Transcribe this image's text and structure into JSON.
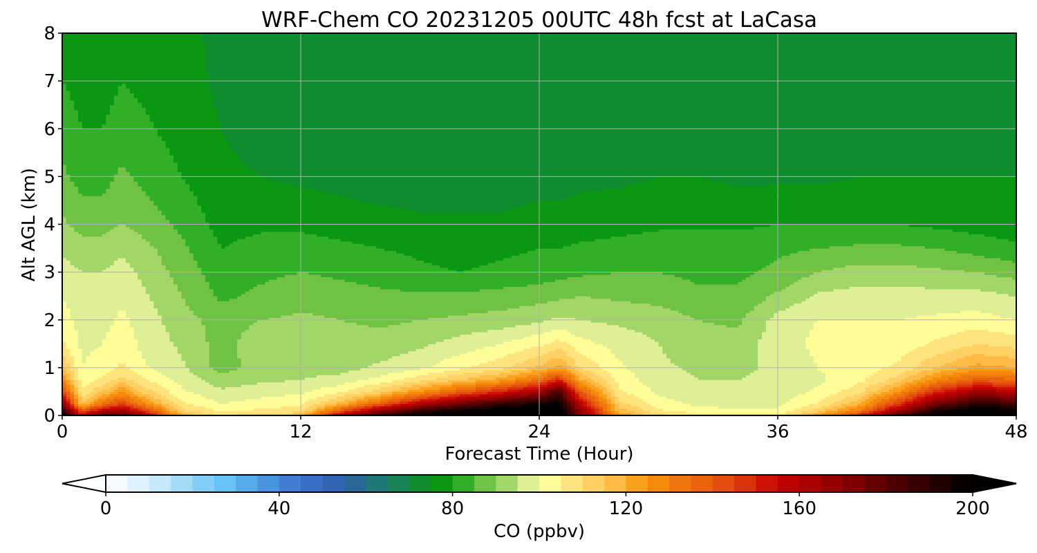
{
  "chart_data": {
    "type": "heatmap",
    "title": "WRF-Chem CO  20231205 00UTC 48h fcst at LaCasa",
    "xlabel": "Forecast Time (Hour)",
    "ylabel": "Alt AGL (km)",
    "xlim": [
      0,
      48
    ],
    "ylim": [
      0,
      8
    ],
    "x_ticks": [
      0,
      12,
      24,
      36,
      48
    ],
    "y_ticks": [
      0,
      1,
      2,
      3,
      4,
      5,
      6,
      7,
      8
    ],
    "grid": true,
    "x": [
      0,
      1,
      2,
      3,
      4,
      6,
      8,
      10,
      12,
      14,
      16,
      18,
      20,
      22,
      24,
      25,
      26,
      28,
      30,
      32,
      34,
      36,
      38,
      40,
      42,
      44,
      46,
      48
    ],
    "y": [
      0,
      0.1,
      0.25,
      0.5,
      0.75,
      1,
      1.5,
      2,
      2.5,
      3,
      3.5,
      4,
      5,
      6,
      7,
      8
    ],
    "z": [
      [
        205,
        160,
        180,
        185,
        170,
        120,
        110,
        115,
        118,
        165,
        190,
        202,
        205,
        210,
        212,
        205,
        175,
        125,
        112,
        110,
        110,
        108,
        125,
        150,
        185,
        208,
        210,
        205
      ],
      [
        190,
        140,
        160,
        165,
        150,
        112,
        104,
        106,
        108,
        140,
        170,
        190,
        198,
        205,
        210,
        206,
        170,
        118,
        106,
        102,
        101,
        101,
        112,
        130,
        165,
        195,
        205,
        200
      ],
      [
        168,
        115,
        132,
        145,
        128,
        106,
        100,
        102,
        104,
        118,
        138,
        160,
        176,
        188,
        196,
        200,
        160,
        112,
        102,
        99,
        98,
        99,
        105,
        118,
        145,
        175,
        190,
        186
      ],
      [
        145,
        106,
        115,
        125,
        114,
        101,
        96,
        98,
        99,
        104,
        113,
        125,
        138,
        150,
        165,
        185,
        140,
        106,
        99,
        96,
        96,
        97,
        101,
        108,
        125,
        150,
        165,
        160
      ],
      [
        128,
        102,
        106,
        112,
        106,
        98,
        92,
        94,
        95,
        97,
        102,
        108,
        115,
        122,
        134,
        150,
        122,
        103,
        97,
        95,
        95,
        96,
        99,
        103,
        112,
        128,
        138,
        136
      ],
      [
        116,
        100,
        102,
        106,
        101,
        96,
        88,
        92,
        93,
        93,
        96,
        99,
        104,
        108,
        116,
        122,
        110,
        101,
        96,
        94,
        94,
        96,
        100,
        102,
        106,
        115,
        122,
        120
      ],
      [
        106,
        99,
        100,
        103,
        99,
        94,
        88,
        93,
        93,
        92,
        92,
        94,
        97,
        100,
        104,
        107,
        102,
        98,
        95,
        92,
        92,
        98,
        101,
        101,
        102,
        106,
        110,
        108
      ],
      [
        102,
        98,
        98,
        101,
        98,
        92,
        88,
        90,
        91,
        90,
        89,
        90,
        91,
        92,
        94,
        96,
        95,
        94,
        93,
        90,
        89,
        97,
        100,
        100,
        100,
        101,
        102,
        100
      ],
      [
        100,
        97,
        97,
        99,
        96,
        90,
        84,
        86,
        88,
        87,
        86,
        86,
        86,
        87,
        88,
        89,
        90,
        89,
        88,
        86,
        86,
        91,
        96,
        97,
        97,
        97,
        97,
        95
      ],
      [
        97,
        95,
        95,
        97,
        94,
        88,
        82,
        84,
        85,
        84,
        83,
        81,
        80,
        81,
        82,
        83,
        84,
        85,
        85,
        84,
        84,
        86,
        90,
        92,
        92,
        91,
        90,
        88
      ],
      [
        94,
        92,
        92,
        94,
        92,
        86,
        80,
        82,
        82,
        81,
        80,
        79,
        78,
        79,
        80,
        80,
        81,
        82,
        83,
        83,
        83,
        84,
        85,
        86,
        86,
        85,
        83,
        81
      ],
      [
        91,
        88,
        88,
        90,
        88,
        84,
        78,
        79,
        79,
        78,
        77,
        76,
        76,
        76,
        77,
        77,
        77,
        78,
        79,
        79,
        79,
        80,
        80,
        80,
        80,
        79,
        78,
        77
      ],
      [
        86,
        83,
        83,
        86,
        84,
        80,
        76,
        75,
        74,
        73,
        72,
        72,
        72,
        72,
        73,
        73,
        74,
        74,
        75,
        75,
        74,
        74,
        74,
        75,
        75,
        75,
        75,
        75
      ],
      [
        83,
        80,
        80,
        82,
        81,
        78,
        75,
        73,
        72,
        71,
        71,
        70,
        70,
        71,
        71,
        72,
        72,
        73,
        73,
        73,
        72,
        72,
        72,
        72,
        72,
        73,
        73,
        73
      ],
      [
        80,
        78,
        78,
        80,
        79,
        77,
        74,
        72,
        71,
        70,
        70,
        70,
        70,
        70,
        71,
        71,
        71,
        71,
        72,
        71,
        71,
        71,
        71,
        71,
        71,
        72,
        72,
        72
      ],
      [
        78,
        77,
        77,
        78,
        78,
        76,
        74,
        72,
        71,
        70,
        70,
        70,
        70,
        70,
        70,
        70,
        70,
        70,
        70,
        70,
        71,
        71,
        71,
        71,
        71,
        71,
        71,
        71
      ]
    ],
    "colorbar": {
      "label": "CO  (ppbv)",
      "min": 0,
      "max": 200,
      "step": 5,
      "ticks": [
        0,
        40,
        80,
        120,
        160,
        200
      ],
      "extend": "both",
      "orientation": "horizontal",
      "placement": "bottom"
    },
    "colormap": [
      [
        0,
        "#ffffff"
      ],
      [
        10,
        "#d6eefb"
      ],
      [
        20,
        "#92d4f6"
      ],
      [
        28,
        "#62c2f5"
      ],
      [
        35,
        "#4d9fe6"
      ],
      [
        45,
        "#3d72cf"
      ],
      [
        55,
        "#2f5fa9"
      ],
      [
        63,
        "#1f7a73"
      ],
      [
        70,
        "#148a45"
      ],
      [
        76,
        "#058f0d"
      ],
      [
        80,
        "#13a51a"
      ],
      [
        88,
        "#76c448"
      ],
      [
        94,
        "#b0dc72"
      ],
      [
        98,
        "#e6f29a"
      ],
      [
        102,
        "#ffff9a"
      ],
      [
        108,
        "#ffe27a"
      ],
      [
        116,
        "#ffc352"
      ],
      [
        125,
        "#f8920c"
      ],
      [
        135,
        "#ec6c0d"
      ],
      [
        145,
        "#e0420e"
      ],
      [
        155,
        "#c80000"
      ],
      [
        165,
        "#a00000"
      ],
      [
        175,
        "#720000"
      ],
      [
        185,
        "#420000"
      ],
      [
        200,
        "#000000"
      ]
    ]
  }
}
